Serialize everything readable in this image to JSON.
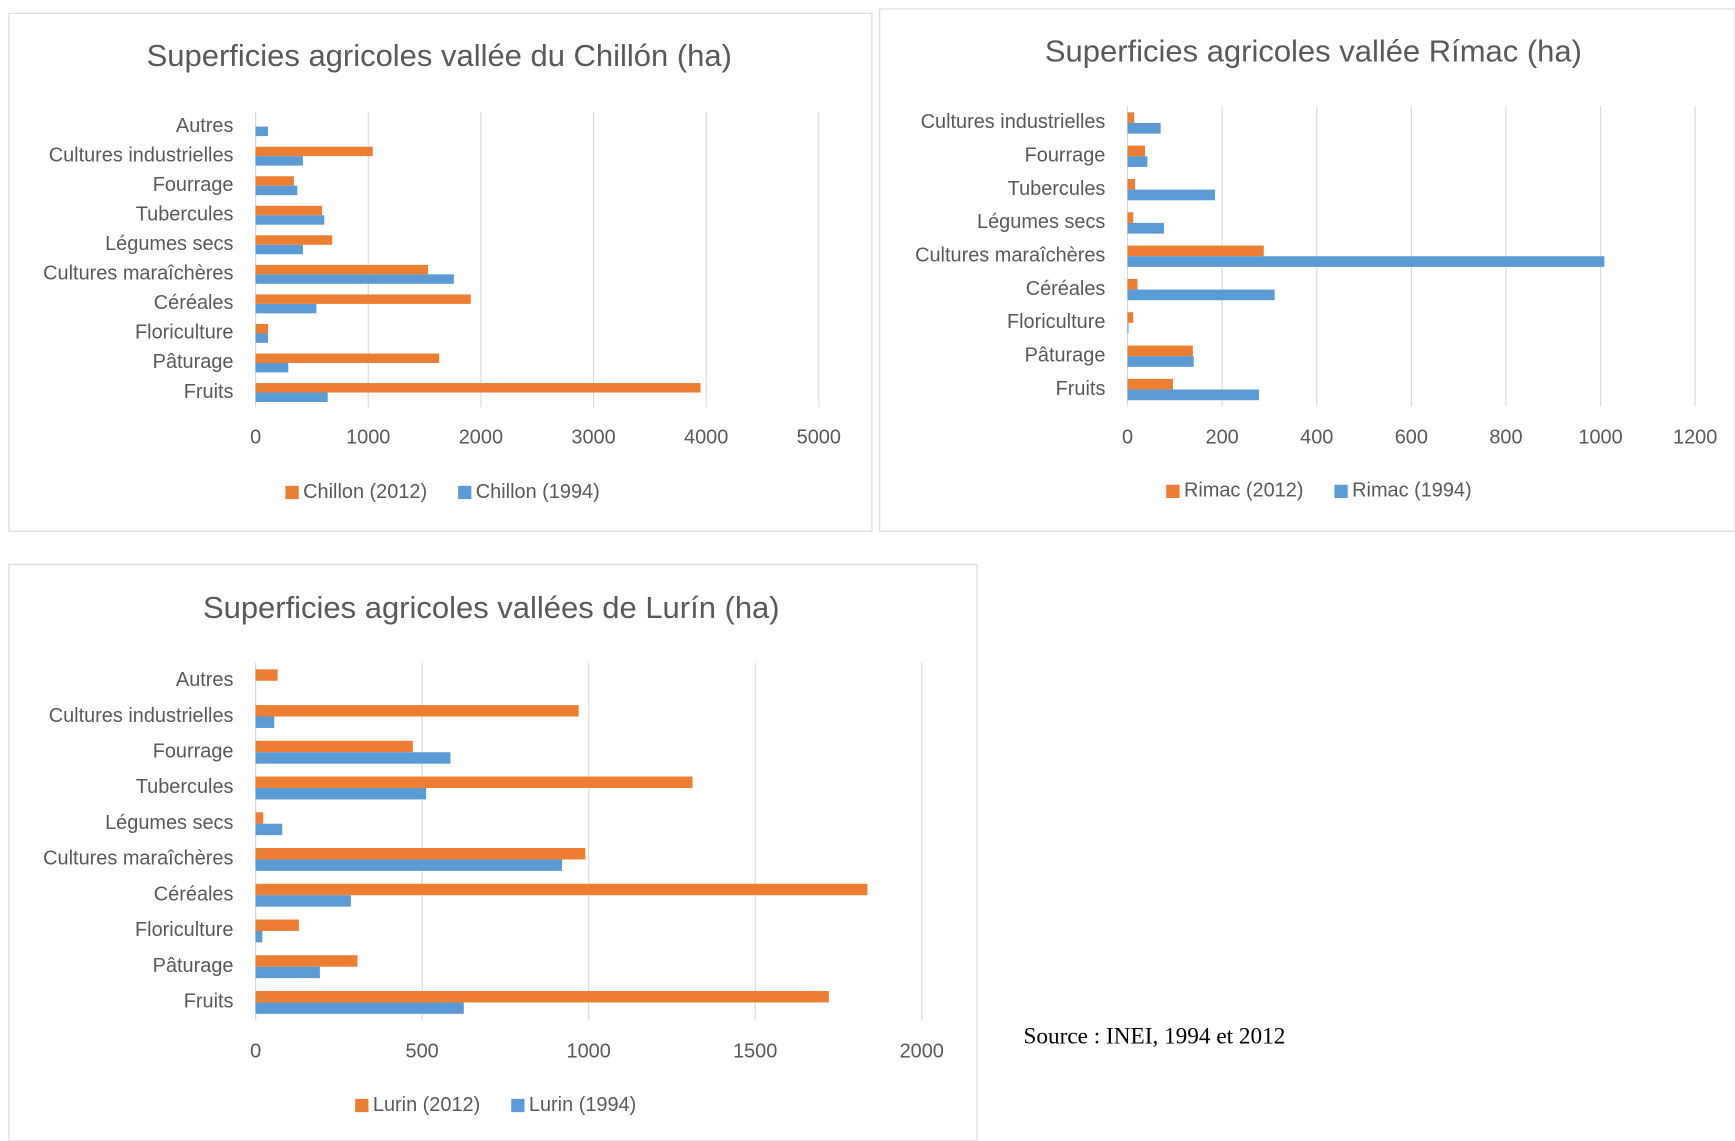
{
  "chart_data": [
    {
      "type": "bar",
      "orientation": "horizontal",
      "title": "Superficies agricoles vallée du Chillón (ha)",
      "categories": [
        "Fruits",
        "Pâturage",
        "Floriculture",
        "Céréales",
        "Cultures maraîchères",
        "Légumes secs",
        "Tubercules",
        "Fourrage",
        "Cultures industrielles",
        "Autres"
      ],
      "series": [
        {
          "name": "Chillon (2012)",
          "color": "#ed7d31",
          "values": [
            3950,
            1630,
            110,
            1910,
            1530,
            680,
            590,
            340,
            1040,
            0
          ]
        },
        {
          "name": "Chillon (1994)",
          "color": "#5b9bd5",
          "values": [
            640,
            290,
            110,
            540,
            1760,
            420,
            610,
            370,
            420,
            110
          ]
        }
      ],
      "xlim": [
        0,
        5000
      ],
      "xticks": [
        0,
        1000,
        2000,
        3000,
        4000,
        5000
      ],
      "grid": true,
      "legend": "bottom"
    },
    {
      "type": "bar",
      "orientation": "horizontal",
      "title": "Superficies agricoles vallée Rímac (ha)",
      "categories": [
        "Fruits",
        "Pâturage",
        "Floriculture",
        "Céréales",
        "Cultures maraîchères",
        "Légumes secs",
        "Tubercules",
        "Fourrage",
        "Cultures industrielles"
      ],
      "series": [
        {
          "name": "Rimac (2012)",
          "color": "#ed7d31",
          "values": [
            96,
            138,
            12,
            21,
            288,
            12,
            16,
            37,
            14
          ]
        },
        {
          "name": "Rimac (1994)",
          "color": "#5b9bd5",
          "values": [
            278,
            140,
            2,
            311,
            1008,
            77,
            185,
            42,
            70
          ]
        }
      ],
      "xlim": [
        0,
        1200
      ],
      "xticks": [
        0,
        200,
        400,
        600,
        800,
        1000,
        1200
      ],
      "grid": true,
      "legend": "bottom"
    },
    {
      "type": "bar",
      "orientation": "horizontal",
      "title": "Superficies agricoles vallées de Lurín (ha)",
      "categories": [
        "Fruits",
        "Pâturage",
        "Floriculture",
        "Céréales",
        "Cultures maraîchères",
        "Légumes secs",
        "Tubercules",
        "Fourrage",
        "Cultures industrielles",
        "Autres"
      ],
      "series": [
        {
          "name": "Lurin (2012)",
          "color": "#ed7d31",
          "values": [
            1721,
            306,
            130,
            1837,
            990,
            23,
            1312,
            472,
            970,
            66
          ]
        },
        {
          "name": "Lurin (1994)",
          "color": "#5b9bd5",
          "values": [
            625,
            193,
            20,
            286,
            920,
            80,
            512,
            585,
            56,
            0
          ]
        }
      ],
      "xlim": [
        0,
        2000
      ],
      "xticks": [
        0,
        500,
        1000,
        1500,
        2000
      ],
      "grid": true,
      "legend": "bottom"
    }
  ],
  "source": "Source : INEI, 1994 et 2012"
}
